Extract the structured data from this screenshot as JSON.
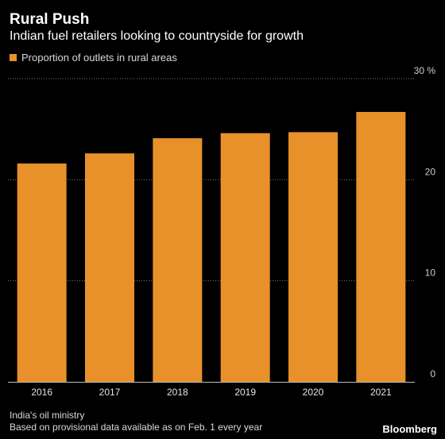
{
  "header": {
    "title": "Rural Push",
    "subtitle": "Indian fuel retailers looking to countryside for growth"
  },
  "footer": {
    "source": "India's oil ministry",
    "note": "Based on provisional data available as on Feb. 1 every year",
    "brand": "Bloomberg"
  },
  "colors": {
    "bar": "#e8912a",
    "grid": "#777777",
    "background": "#000000"
  },
  "chart_data": {
    "type": "bar",
    "title": "Rural Push",
    "subtitle": "Indian fuel retailers looking to countryside for growth",
    "categories": [
      "2016",
      "2017",
      "2018",
      "2019",
      "2020",
      "2021"
    ],
    "series": [
      {
        "name": "Proportion of outlets in rural areas",
        "values": [
          21.6,
          22.6,
          24.1,
          24.6,
          24.7,
          26.7
        ]
      }
    ],
    "ylim": [
      0,
      30
    ],
    "yticks": [
      0,
      10,
      20,
      30
    ],
    "ytick_labels": [
      "0",
      "10",
      "20",
      "30 %"
    ],
    "y_axis_position": "right",
    "grid": true,
    "legend": "top-left"
  }
}
